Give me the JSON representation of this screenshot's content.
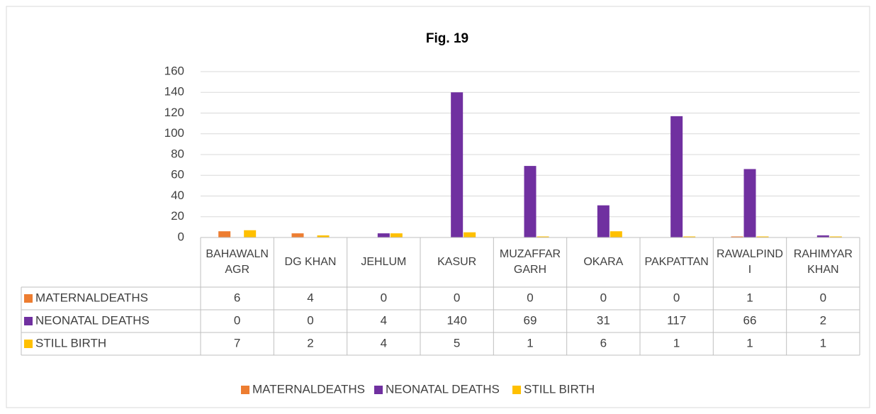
{
  "chart_data": {
    "type": "bar",
    "title": "Fig. 19",
    "categories": [
      "BAHAWALNAGR",
      "DG KHAN",
      "JEHLUM",
      "KASUR",
      "MUZAFFARGARH",
      "OKARA",
      "PAKPATTAN",
      "RAWALPINDI",
      "RAHIMYAR KHAN"
    ],
    "series": [
      {
        "name": "MATERNALDEATHS",
        "color": "#ed7d31",
        "values": [
          6,
          4,
          0,
          0,
          0,
          0,
          0,
          1,
          0
        ]
      },
      {
        "name": "NEONATAL DEATHS",
        "color": "#7030a0",
        "values": [
          0,
          0,
          4,
          140,
          69,
          31,
          117,
          66,
          2
        ]
      },
      {
        "name": "STILL BIRTH",
        "color": "#ffc000",
        "values": [
          7,
          2,
          4,
          5,
          1,
          6,
          1,
          1,
          1
        ]
      }
    ],
    "ylim": [
      0,
      160
    ],
    "yticks": [
      0,
      20,
      40,
      60,
      80,
      100,
      120,
      140,
      160
    ],
    "grid": true,
    "legend": "bottom"
  }
}
